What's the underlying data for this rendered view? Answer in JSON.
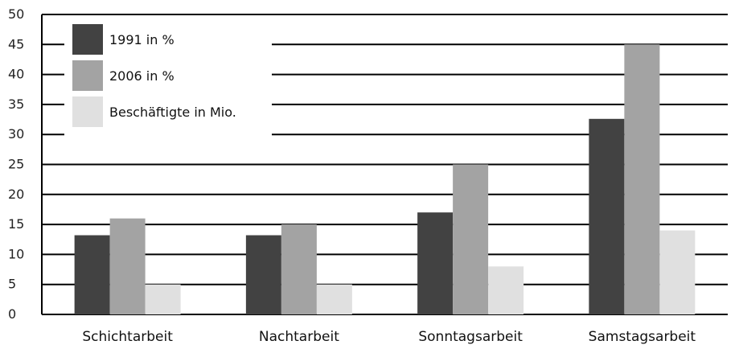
{
  "chart_data": {
    "type": "bar",
    "categories": [
      "Schichtarbeit",
      "Nachtarbeit",
      "Sonntagsarbeit",
      "Samstagsarbeit"
    ],
    "series": [
      {
        "name": "1991 in %",
        "values": [
          13.2,
          13.2,
          17,
          32.6
        ],
        "color": "#424242"
      },
      {
        "name": "2006 in %",
        "values": [
          16,
          15,
          25,
          45
        ],
        "color": "#a3a3a3"
      },
      {
        "name": "Beschäftigte in Mio.",
        "values": [
          5,
          5,
          8,
          14
        ],
        "color": "#e0e0e0"
      }
    ],
    "ylim": [
      0,
      50
    ],
    "yticks": [
      0,
      5,
      10,
      15,
      20,
      25,
      30,
      35,
      40,
      45,
      50
    ],
    "grid": true,
    "legend": "top-left"
  }
}
